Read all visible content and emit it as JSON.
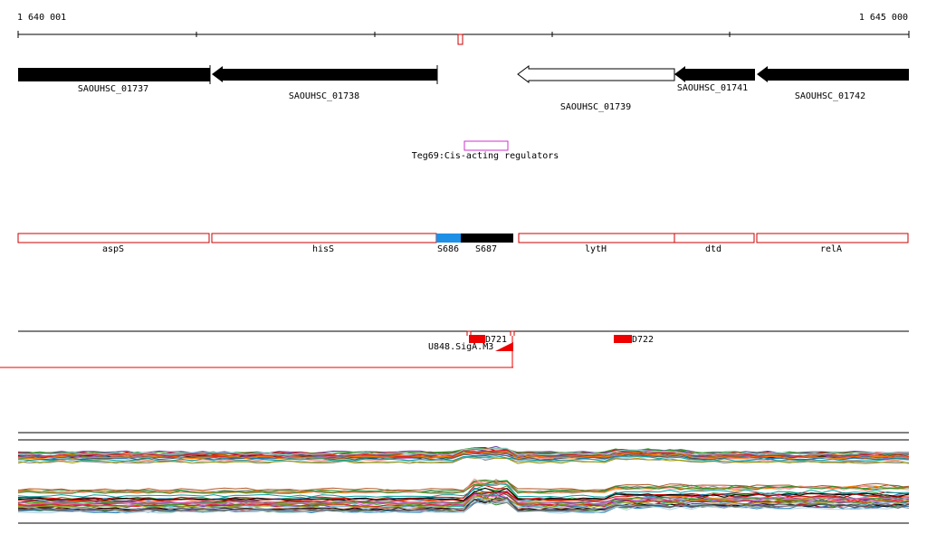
{
  "ruler": {
    "start_label": "1 640 001",
    "end_label": "1 645 000"
  },
  "genes_top": [
    {
      "label": "SAOUHSC_01737",
      "strand": "-",
      "fill": "#000000"
    },
    {
      "label": "SAOUHSC_01738",
      "strand": "-",
      "fill": "#000000"
    },
    {
      "label": "SAOUHSC_01739",
      "strand": "-",
      "fill": "#ffffff"
    },
    {
      "label": "SAOUHSC_01741",
      "strand": "-",
      "fill": "#000000"
    },
    {
      "label": "SAOUHSC_01742",
      "strand": "-",
      "fill": "#000000"
    }
  ],
  "regulator": {
    "label": "Teg69:Cis-acting regulators",
    "color": "#cc33cc"
  },
  "genes_names": [
    {
      "label": "aspS",
      "style": "outline"
    },
    {
      "label": "hisS",
      "style": "outline"
    },
    {
      "label": "S686",
      "style": "blue"
    },
    {
      "label": "S687",
      "style": "black"
    },
    {
      "label": "lytH",
      "style": "outline"
    },
    {
      "label": "dtd",
      "style": "outline"
    },
    {
      "label": "relA",
      "style": "outline"
    }
  ],
  "features": [
    {
      "label": "D721"
    },
    {
      "label": "D722"
    },
    {
      "label": "U848.SigA.M3"
    }
  ],
  "colors": {
    "gene_outline": "#cc0000",
    "s686": "#1e90e6",
    "feature_red": "#ee0000",
    "axis": "#000000"
  }
}
